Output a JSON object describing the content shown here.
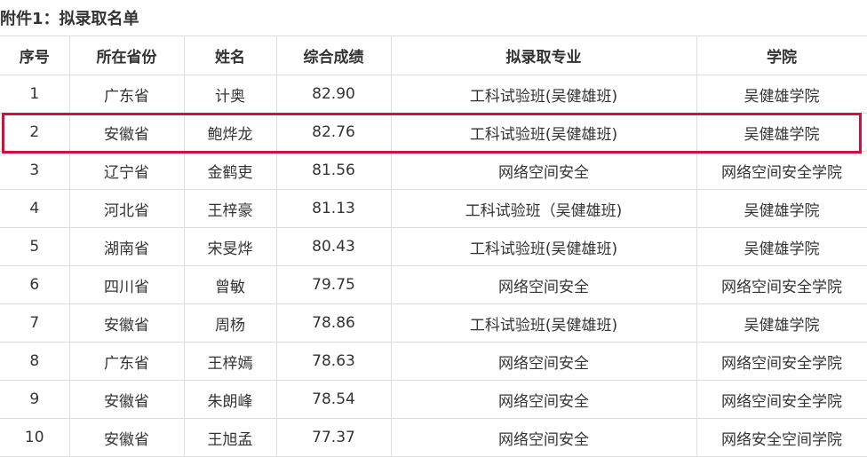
{
  "title": "附件1：拟录取名单",
  "headers": [
    "序号",
    "所在省份",
    "姓名",
    "综合成绩",
    "拟录取专业",
    "学院"
  ],
  "highlight_color": "#d0103f",
  "rows": [
    [
      "1",
      "广东省",
      "计奥",
      "82.90",
      "工科试验班(吴健雄班)",
      "吴健雄学院"
    ],
    [
      "2",
      "安徽省",
      "鲍烨龙",
      "82.76",
      "工科试验班(吴健雄班)",
      "吴健雄学院"
    ],
    [
      "3",
      "辽宁省",
      "金鹤吏",
      "81.56",
      "网络空间安全",
      "网络空间安全学院"
    ],
    [
      "4",
      "河北省",
      "王梓豪",
      "81.13",
      "工科试验班（吴健雄班)",
      "吴健雄学院"
    ],
    [
      "5",
      "湖南省",
      "宋旻烨",
      "80.43",
      "工科试验班(吴健雄班)",
      "吴健雄学院"
    ],
    [
      "6",
      "四川省",
      "曾敏",
      "79.75",
      "网络空间安全",
      "网络空间安全学院"
    ],
    [
      "7",
      "安徽省",
      "周杨",
      "78.86",
      "工科试验班(吴健雄班)",
      "吴健雄学院"
    ],
    [
      "8",
      "广东省",
      "王梓嫣",
      "78.63",
      "网络空间安全",
      "网络空间安全学院"
    ],
    [
      "9",
      "安徽省",
      "朱朗峰",
      "78.54",
      "网络空间安全",
      "网络空间安全学院"
    ],
    [
      "10",
      "安徽省",
      "王旭孟",
      "77.37",
      "网络空间安全",
      "网络安全空间学院"
    ]
  ]
}
